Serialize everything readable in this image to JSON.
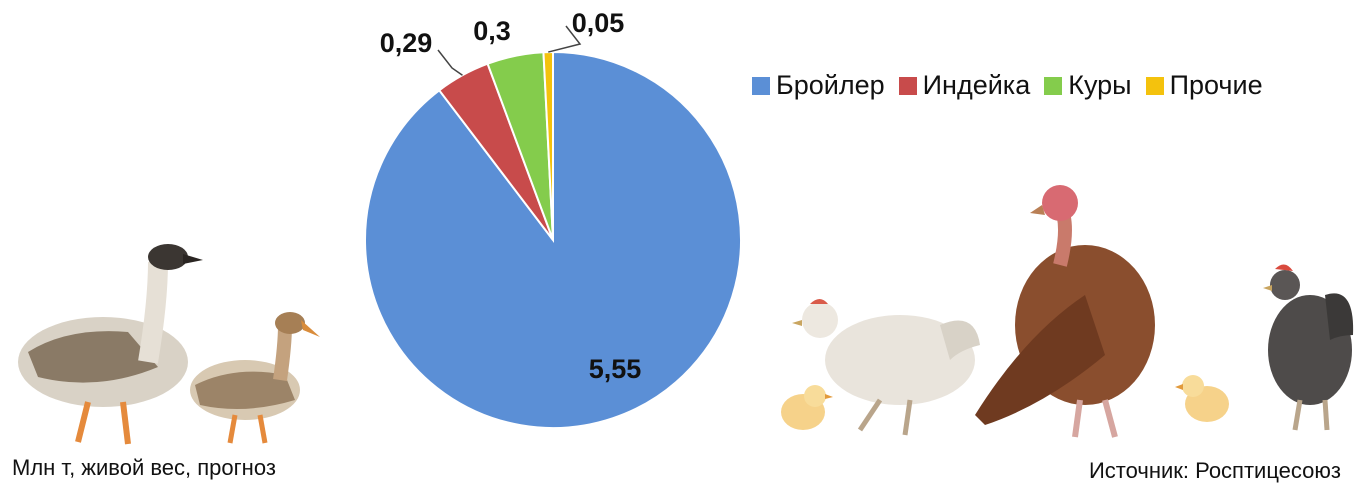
{
  "chart_data": {
    "type": "pie",
    "unit_note": "Млн т, живой вес, прогноз",
    "source": "Источник: Росптицесоюз",
    "slices": [
      {
        "label": "Бройлер",
        "value": 5.55,
        "value_label": "5,55",
        "color": "#5B8FD6"
      },
      {
        "label": "Индейка",
        "value": 0.29,
        "value_label": "0,29",
        "color": "#C84B4B"
      },
      {
        "label": "Куры",
        "value": 0.3,
        "value_label": "0,3",
        "color": "#84CC4C"
      },
      {
        "label": "Прочие",
        "value": 0.05,
        "value_label": "0,05",
        "color": "#F4C20D"
      }
    ],
    "legend_position": "top-right"
  },
  "illustrations": {
    "left": [
      "goose-icon",
      "duck-icon"
    ],
    "right": [
      "chick-icon",
      "hen-icon",
      "turkey-icon",
      "chick-icon",
      "hen-icon"
    ]
  }
}
